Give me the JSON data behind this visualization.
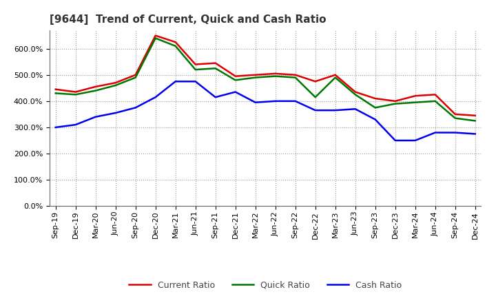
{
  "title": "[9644]  Trend of Current, Quick and Cash Ratio",
  "x_labels": [
    "Sep-19",
    "Dec-19",
    "Mar-20",
    "Jun-20",
    "Sep-20",
    "Dec-20",
    "Mar-21",
    "Jun-21",
    "Sep-21",
    "Dec-21",
    "Mar-22",
    "Jun-22",
    "Sep-22",
    "Dec-22",
    "Mar-23",
    "Jun-23",
    "Sep-23",
    "Dec-23",
    "Mar-24",
    "Jun-24",
    "Sep-24",
    "Dec-24"
  ],
  "current_ratio": [
    445,
    435,
    455,
    470,
    500,
    650,
    625,
    540,
    545,
    495,
    500,
    505,
    500,
    475,
    500,
    435,
    410,
    400,
    420,
    425,
    350,
    345
  ],
  "quick_ratio": [
    430,
    425,
    440,
    460,
    490,
    640,
    610,
    520,
    525,
    480,
    490,
    495,
    490,
    415,
    490,
    425,
    375,
    390,
    395,
    400,
    335,
    325
  ],
  "cash_ratio": [
    300,
    310,
    340,
    355,
    375,
    415,
    475,
    475,
    415,
    435,
    395,
    400,
    400,
    365,
    365,
    370,
    330,
    250,
    250,
    280,
    280,
    275
  ],
  "current_color": "#dd0000",
  "quick_color": "#007700",
  "cash_color": "#0000ee",
  "ylim": [
    0,
    670
  ],
  "yticks": [
    0,
    100,
    200,
    300,
    400,
    500,
    600
  ],
  "bg_color": "#ffffff",
  "plot_bg_color": "#ffffff",
  "grid_color": "#999999",
  "line_width": 1.8,
  "title_fontsize": 11,
  "legend_fontsize": 9,
  "tick_fontsize": 8
}
